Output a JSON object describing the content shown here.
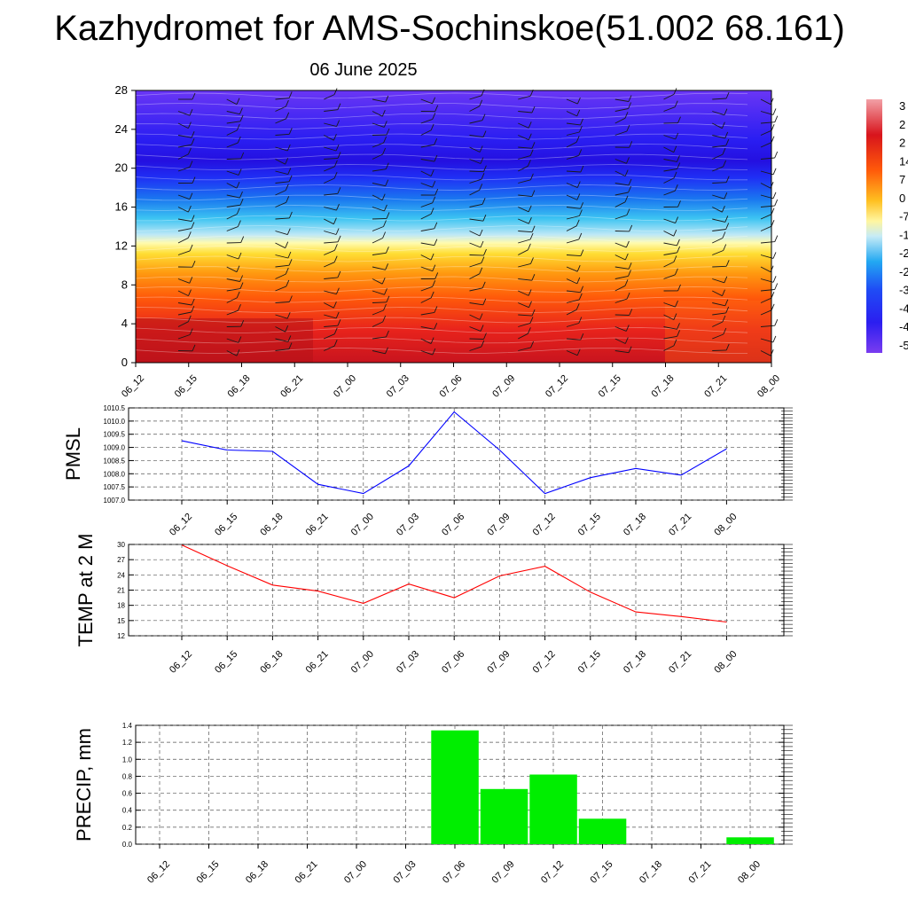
{
  "title": "Kazhydromet for AMS-Sochinskoe(51.002 68.161)",
  "subtitle": "06 June 2025",
  "colors": {
    "pmsl_line": "#0000ff",
    "temp_line": "#ff0000",
    "precip_bar": "#00ee00"
  },
  "chart_data": [
    {
      "type": "heatmap",
      "name": "upper-air-section",
      "x": [
        "06_12",
        "06_15",
        "06_18",
        "06_21",
        "07_00",
        "07_03",
        "07_06",
        "07_09",
        "07_12",
        "07_15",
        "07_18",
        "07_21",
        "08_00"
      ],
      "yticks": [
        0,
        4,
        8,
        12,
        16,
        20,
        24,
        28
      ],
      "ylim": [
        0,
        28
      ],
      "colorbar_labels": [
        "3",
        "2",
        "2",
        "14",
        "7",
        "0",
        "-7",
        "-1",
        "-2",
        "-2",
        "-3",
        "-4",
        "-4",
        "-5"
      ],
      "description_of_field": "temperature-like field: warm (red) near bottom, yellow near 12, blue aloft",
      "grid": false
    },
    {
      "type": "line",
      "name": "pmsl",
      "ylabel": "PMSL",
      "x": [
        "06_12",
        "06_15",
        "06_18",
        "06_21",
        "07_00",
        "07_03",
        "07_06",
        "07_09",
        "07_12",
        "07_15",
        "07_18",
        "07_21",
        "08_00"
      ],
      "values": [
        1009.25,
        1008.9,
        1008.85,
        1007.6,
        1007.25,
        1008.3,
        1010.35,
        1008.9,
        1007.25,
        1007.85,
        1008.2,
        1007.95,
        1008.95
      ],
      "ylim": [
        1007.0,
        1010.5
      ],
      "yticks": [
        "1007.0",
        "1007.5",
        "1008.0",
        "1008.5",
        "1009.0",
        "1009.5",
        "1010.0",
        "1010.5"
      ],
      "grid": true
    },
    {
      "type": "line",
      "name": "temp2m",
      "ylabel": "TEMP at 2 M",
      "x": [
        "06_12",
        "06_15",
        "06_18",
        "06_21",
        "07_00",
        "07_03",
        "07_06",
        "07_09",
        "07_12",
        "07_15",
        "07_18",
        "07_21",
        "08_00"
      ],
      "values": [
        29.9,
        25.8,
        22.0,
        20.8,
        18.4,
        22.2,
        19.5,
        23.8,
        25.7,
        20.6,
        16.7,
        15.8,
        14.7
      ],
      "ylim": [
        12,
        30
      ],
      "yticks": [
        "12",
        "15",
        "18",
        "21",
        "24",
        "27",
        "30"
      ],
      "grid": true
    },
    {
      "type": "bar",
      "name": "precip",
      "ylabel": "PRECIP, mm",
      "categories": [
        "06_12",
        "06_15",
        "06_18",
        "06_21",
        "07_00",
        "07_03",
        "07_06",
        "07_09",
        "07_12",
        "07_15",
        "07_18",
        "07_21",
        "08_00"
      ],
      "values": [
        0,
        0,
        0,
        0,
        0,
        0,
        1.34,
        0.65,
        0.82,
        0.3,
        0,
        0,
        0.08
      ],
      "ylim": [
        0,
        1.4
      ],
      "yticks": [
        "0.0",
        "0.2",
        "0.4",
        "0.6",
        "0.8",
        "1.0",
        "1.2",
        "1.4"
      ],
      "grid": true
    }
  ]
}
